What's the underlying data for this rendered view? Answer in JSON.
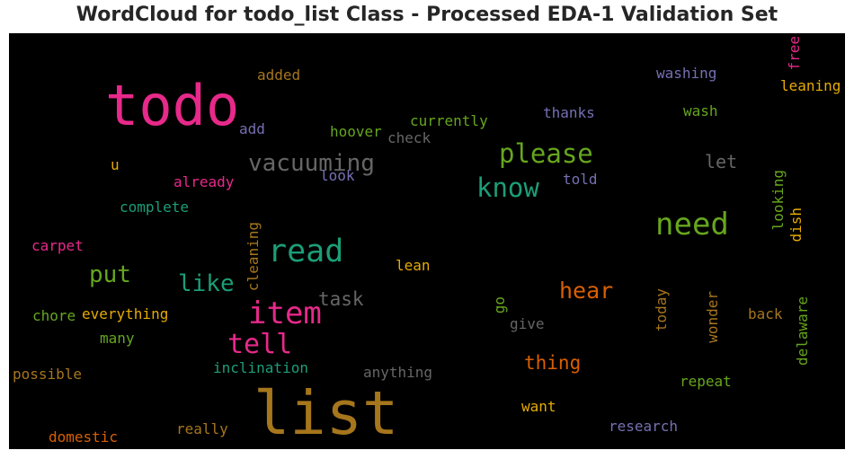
{
  "title": "WordCloud for todo_list Class - Processed EDA-1 Validation Set",
  "colors": {
    "background": "#000000",
    "pink": "#e7298a",
    "teal": "#1b9e77",
    "green": "#66a61e",
    "gold": "#a6761d",
    "yellow": "#e6ab02",
    "orange": "#d95f02",
    "purple": "#7570b3",
    "gray": "#666666"
  },
  "chart_data": {
    "type": "wordcloud",
    "title": "WordCloud for todo_list Class - Processed EDA-1 Validation Set",
    "words": [
      {
        "text": "todo",
        "color": "#e7298a",
        "weight": 1.0
      },
      {
        "text": "list",
        "color": "#a6761d",
        "weight": 0.95
      },
      {
        "text": "read",
        "color": "#1b9e77",
        "weight": 0.52
      },
      {
        "text": "item",
        "color": "#e7298a",
        "weight": 0.5
      },
      {
        "text": "need",
        "color": "#66a61e",
        "weight": 0.5
      },
      {
        "text": "please",
        "color": "#66a61e",
        "weight": 0.44
      },
      {
        "text": "know",
        "color": "#1b9e77",
        "weight": 0.44
      },
      {
        "text": "tell",
        "color": "#e7298a",
        "weight": 0.43
      },
      {
        "text": "vacuuming",
        "color": "#666666",
        "weight": 0.41
      },
      {
        "text": "put",
        "color": "#66a61e",
        "weight": 0.38
      },
      {
        "text": "like",
        "color": "#1b9e77",
        "weight": 0.38
      },
      {
        "text": "hear",
        "color": "#d95f02",
        "weight": 0.36
      },
      {
        "text": "task",
        "color": "#666666",
        "weight": 0.32
      },
      {
        "text": "thing",
        "color": "#d95f02",
        "weight": 0.31
      },
      {
        "text": "let",
        "color": "#666666",
        "weight": 0.3
      },
      {
        "text": "washing",
        "color": "#7570b3",
        "weight": 0.26
      },
      {
        "text": "leaning",
        "color": "#e6ab02",
        "weight": 0.26
      },
      {
        "text": "wash",
        "color": "#66a61e",
        "weight": 0.26
      },
      {
        "text": "free",
        "color": "#e7298a",
        "weight": 0.26
      },
      {
        "text": "added",
        "color": "#a6761d",
        "weight": 0.26
      },
      {
        "text": "currently",
        "color": "#66a61e",
        "weight": 0.26
      },
      {
        "text": "thanks",
        "color": "#7570b3",
        "weight": 0.26
      },
      {
        "text": "add",
        "color": "#7570b3",
        "weight": 0.26
      },
      {
        "text": "hoover",
        "color": "#66a61e",
        "weight": 0.26
      },
      {
        "text": "check",
        "color": "#666666",
        "weight": 0.26
      },
      {
        "text": "u",
        "color": "#e6ab02",
        "weight": 0.26
      },
      {
        "text": "already",
        "color": "#e7298a",
        "weight": 0.26
      },
      {
        "text": "look",
        "color": "#7570b3",
        "weight": 0.26
      },
      {
        "text": "told",
        "color": "#7570b3",
        "weight": 0.26
      },
      {
        "text": "complete",
        "color": "#1b9e77",
        "weight": 0.26
      },
      {
        "text": "looking",
        "color": "#66a61e",
        "weight": 0.26
      },
      {
        "text": "dish",
        "color": "#e6ab02",
        "weight": 0.26
      },
      {
        "text": "carpet",
        "color": "#e7298a",
        "weight": 0.26
      },
      {
        "text": "cleaning",
        "color": "#a6761d",
        "weight": 0.26
      },
      {
        "text": "lean",
        "color": "#e6ab02",
        "weight": 0.26
      },
      {
        "text": "go",
        "color": "#66a61e",
        "weight": 0.26
      },
      {
        "text": "give",
        "color": "#666666",
        "weight": 0.26
      },
      {
        "text": "today",
        "color": "#a6761d",
        "weight": 0.26
      },
      {
        "text": "wonder",
        "color": "#a6761d",
        "weight": 0.26
      },
      {
        "text": "back",
        "color": "#a6761d",
        "weight": 0.26
      },
      {
        "text": "delaware",
        "color": "#66a61e",
        "weight": 0.26
      },
      {
        "text": "chore",
        "color": "#66a61e",
        "weight": 0.26
      },
      {
        "text": "everything",
        "color": "#e6ab02",
        "weight": 0.26
      },
      {
        "text": "many",
        "color": "#66a61e",
        "weight": 0.26
      },
      {
        "text": "possible",
        "color": "#a6761d",
        "weight": 0.26
      },
      {
        "text": "inclination",
        "color": "#1b9e77",
        "weight": 0.26
      },
      {
        "text": "anything",
        "color": "#666666",
        "weight": 0.26
      },
      {
        "text": "repeat",
        "color": "#66a61e",
        "weight": 0.26
      },
      {
        "text": "want",
        "color": "#e6ab02",
        "weight": 0.26
      },
      {
        "text": "research",
        "color": "#7570b3",
        "weight": 0.26
      },
      {
        "text": "really",
        "color": "#a6761d",
        "weight": 0.26
      },
      {
        "text": "domestic",
        "color": "#d95f02",
        "weight": 0.26
      }
    ]
  }
}
